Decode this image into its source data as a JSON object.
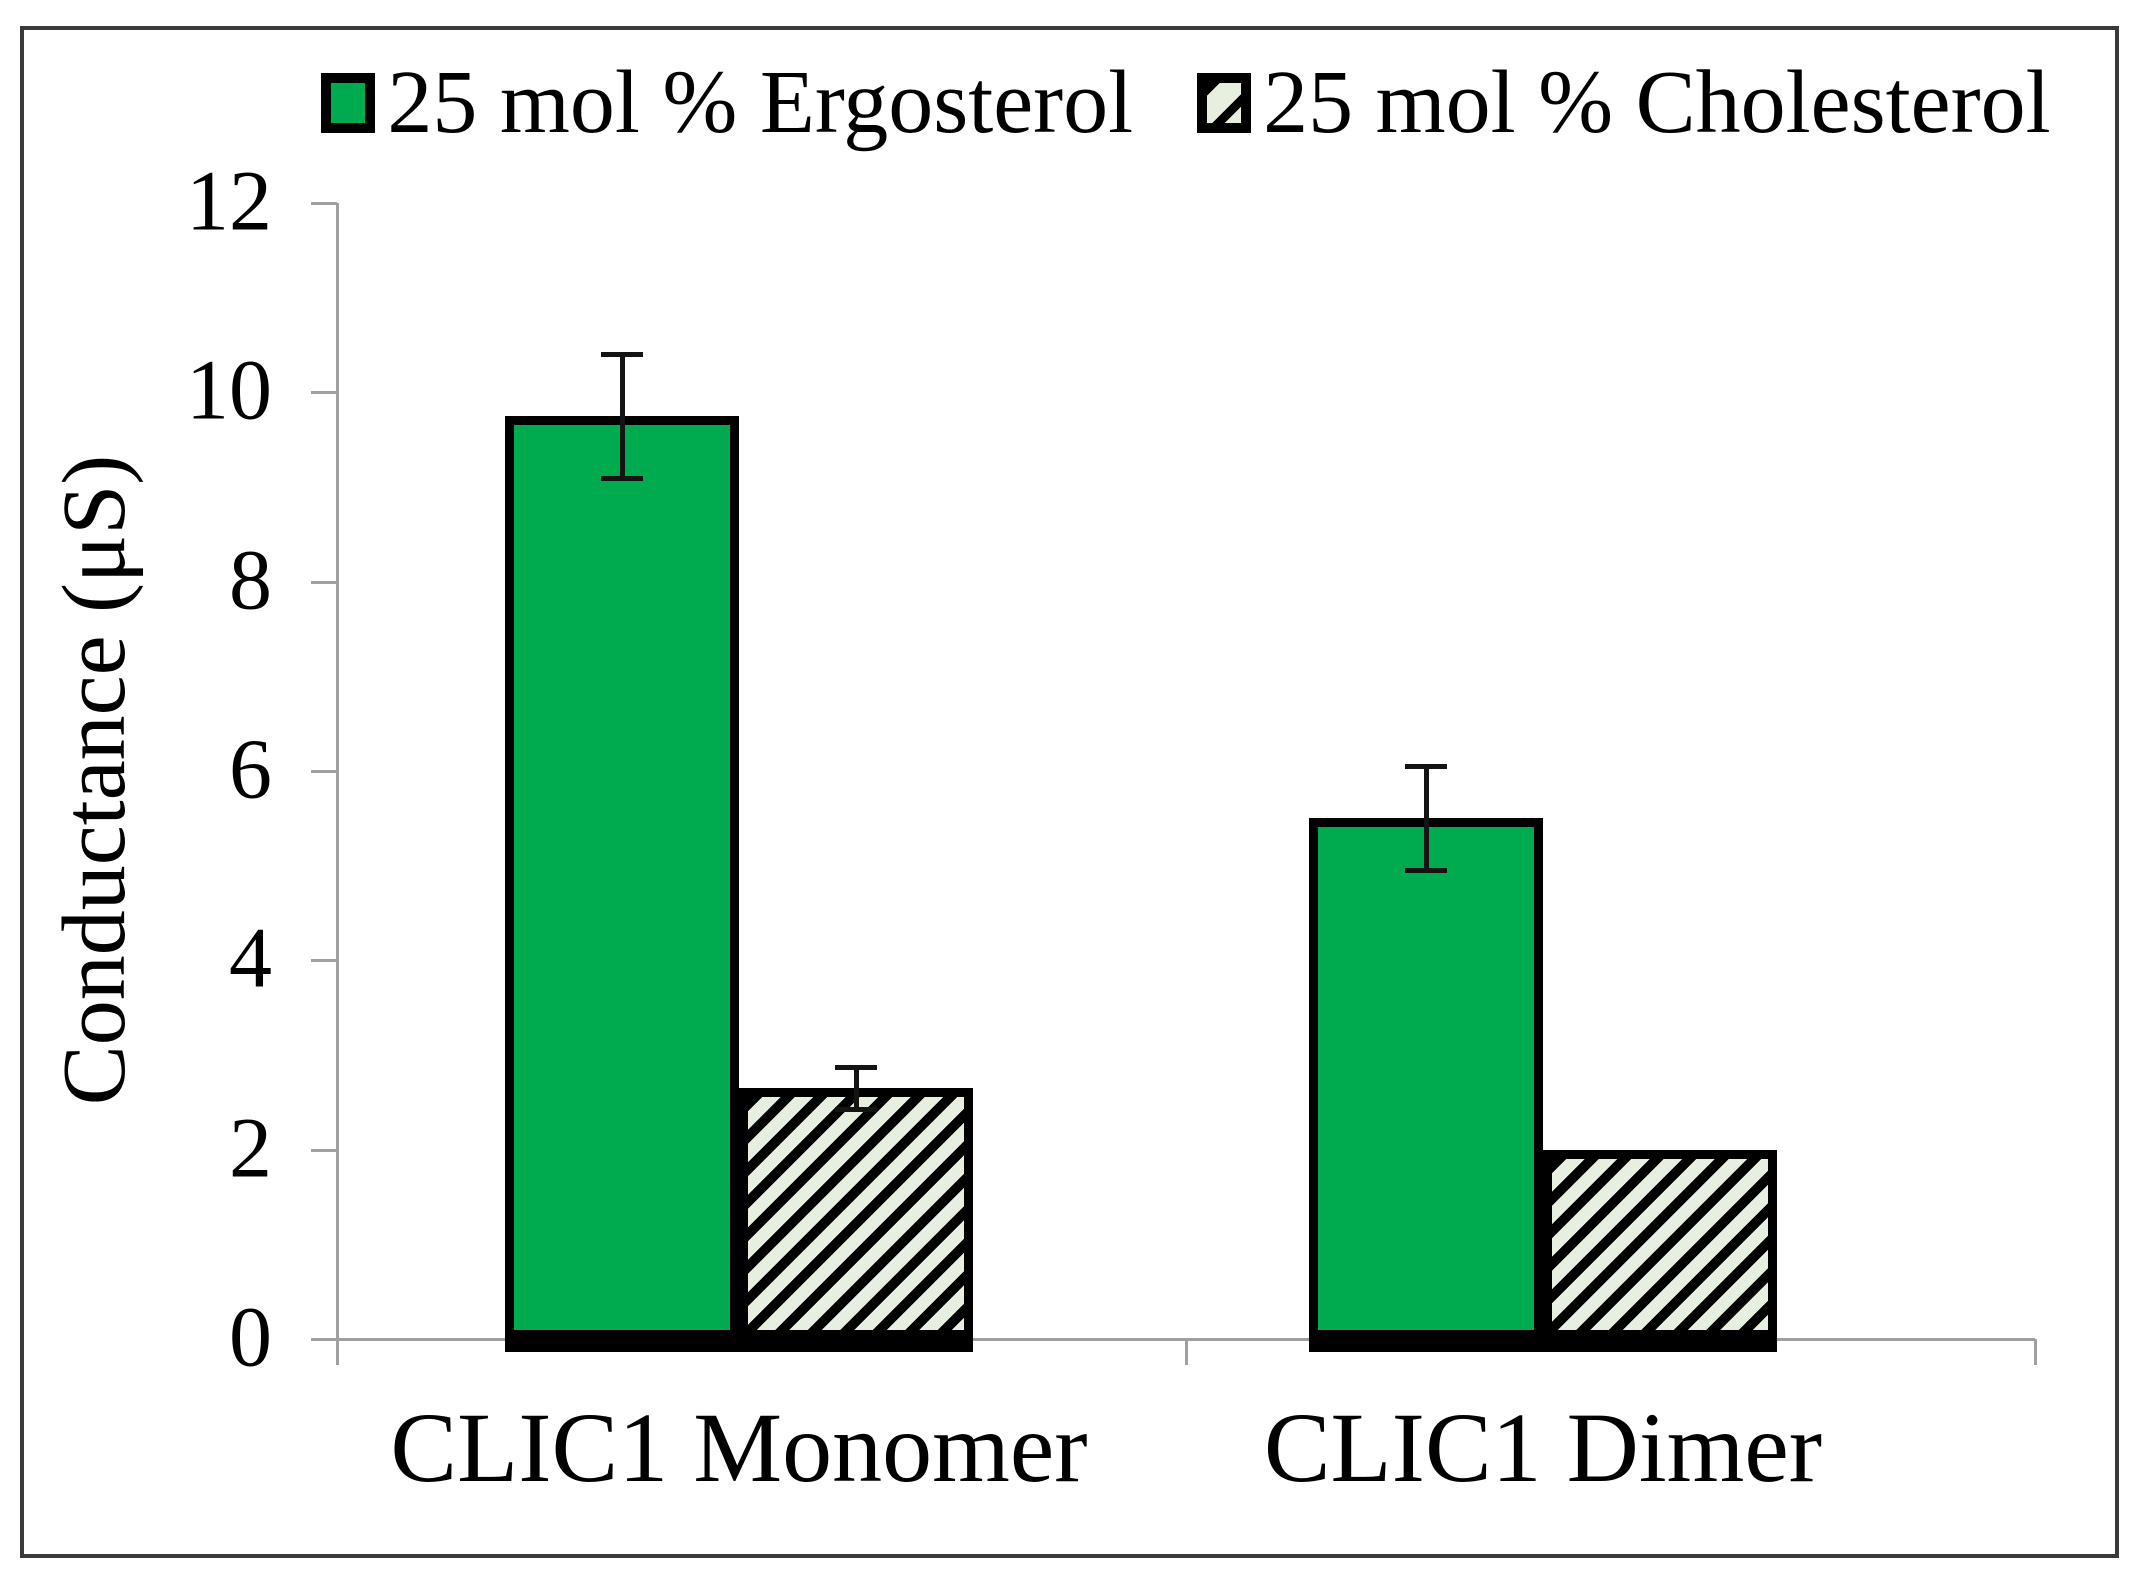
{
  "figure": {
    "ylabel": "Conductance (μS)"
  },
  "chart_data": {
    "type": "bar",
    "title": "",
    "xlabel": "",
    "ylabel": "Conductance (μS)",
    "categories": [
      "CLIC1 Monomer",
      "CLIC1 Dimer"
    ],
    "series": [
      {
        "name": "25 mol % Ergosterol",
        "values": [
          9.75,
          5.5
        ],
        "errors": [
          0.65,
          0.55
        ],
        "style": "solid",
        "color": "#00ab50"
      },
      {
        "name": "25 mol % Cholesterol",
        "values": [
          2.65,
          2.0
        ],
        "errors": [
          0.22,
          0
        ],
        "style": "hatched",
        "hatch_background": "#e7efe0",
        "hatch_stripe": "#000000"
      }
    ],
    "ylim": [
      0,
      12
    ],
    "yticks": [
      0,
      2,
      4,
      6,
      8,
      10,
      12
    ],
    "grid": false,
    "legend_position": "top-center",
    "axis_color": "#a0a0a0",
    "bar_border_color": "#000000"
  }
}
